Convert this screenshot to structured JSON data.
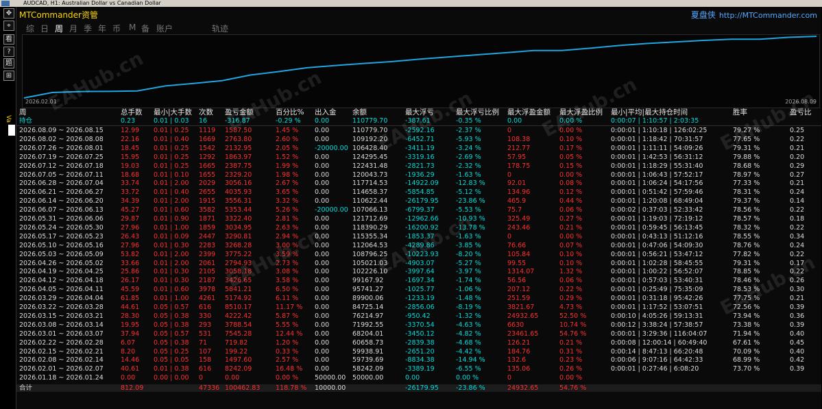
{
  "window": {
    "title": "AUDCAD, H1:  Australian Dollar vs Canadian Dollar"
  },
  "brand": "MTCommander资管",
  "brand_right": {
    "cn": "夏盘侠",
    "url": "http://MTCommander.com"
  },
  "tabs": [
    "综",
    "日",
    "周",
    "月",
    "季",
    "年",
    "币",
    "M",
    "备",
    "账户",
    "轨迹"
  ],
  "active_tab": "周",
  "left_toolbar": [
    "✥",
    "⌖",
    "看",
    "?",
    "题",
    "⊞",
    "▣"
  ],
  "left_vtab": "Va",
  "watermark": "EAHub.cn",
  "chart": {
    "x_start_label": "2026.02.01",
    "x_end_label": "2026.08.09",
    "line_color": "#1ea7e1"
  },
  "chart_data": {
    "type": "line",
    "title": "",
    "xlabel": "",
    "ylabel": "",
    "x": [
      "2026.01.18",
      "2026.02.01",
      "2026.02.08",
      "2026.02.15",
      "2026.02.22",
      "2026.03.01",
      "2026.03.08",
      "2026.03.15",
      "2026.03.22",
      "2026.03.29",
      "2026.04.05",
      "2026.04.12",
      "2026.04.19",
      "2026.04.26",
      "2026.05.03",
      "2026.05.10",
      "2026.05.17",
      "2026.05.24",
      "2026.05.31",
      "2026.06.07",
      "2026.06.14",
      "2026.06.21",
      "2026.06.28",
      "2026.07.05",
      "2026.07.12",
      "2026.07.19",
      "2026.07.26",
      "2026.08.02",
      "2026.08.09"
    ],
    "series": [
      {
        "values": [
          50000,
          58242.09,
          59739.69,
          59938.91,
          60658.73,
          68204.01,
          71992.55,
          76214.97,
          84725.14,
          89900.06,
          95741.27,
          99167.92,
          102226.1,
          105021.03,
          108796.25,
          112064.53,
          115355.34,
          118390.29,
          121712.69,
          107066.13,
          110622.44,
          114658.37,
          117714.53,
          120043.73,
          122431.48,
          124295.45,
          106428.4,
          109192.2,
          110779.7
        ]
      }
    ]
  },
  "table": {
    "headers": [
      "周",
      "总手数",
      "最小|大手数",
      "次数",
      "盈亏金额",
      "百分比%",
      "出入金",
      "余额",
      "最大浮亏",
      "最大浮亏比例",
      "最大浮盈金额",
      "最大浮盈比例",
      "最小|平均|最大持仓时间",
      "胜率",
      "盈亏比"
    ],
    "holding": [
      "持仓",
      "0.23",
      "0.01 | 0.03",
      "16",
      "-316.87",
      "-0.29 %",
      "0.00",
      "110779.70",
      "-387.61",
      "-0.35 %",
      "0.00",
      "0.00 %",
      "0:00:07 | 1:10:57 | 2:03:35",
      "",
      ""
    ],
    "rows": [
      [
        "2026.08.09 ~ 2026.08.15",
        "12.99",
        "0.01 | 0.25",
        "1119",
        "1587.50",
        "1.45 %",
        "0.00",
        "110779.70",
        "-2592.16",
        "-2.37 %",
        "0",
        "0.00 %",
        "0:00:01 | 1:10:18 | 126:02:25",
        "79.27 %",
        "0.25"
      ],
      [
        "2026.08.02 ~ 2026.08.08",
        "22.16",
        "0.01 | 0.40",
        "1669",
        "2763.80",
        "2.60 %",
        "0.00",
        "109192.20",
        "-6452.71",
        "-5.93 %",
        "108.38",
        "0.10 %",
        "0:00:01 | 1:18:42 | 70:31:57",
        "77.65 %",
        "0.22"
      ],
      [
        "2026.07.26 ~ 2026.08.01",
        "18.45",
        "0.01 | 0.25",
        "1542",
        "2132.95",
        "2.05 %",
        "-20000.00",
        "106428.40",
        "-3411.19",
        "-3.24 %",
        "212.77",
        "0.17 %",
        "0:00:01 | 1:11:11 | 54:09:26",
        "79.31 %",
        "0.21"
      ],
      [
        "2026.07.19 ~ 2026.07.25",
        "15.95",
        "0.01 | 0.25",
        "1292",
        "1863.97",
        "1.52 %",
        "0.00",
        "124295.45",
        "-3319.16",
        "-2.69 %",
        "57.95",
        "0.05 %",
        "0:00:01 | 1:42:53 | 56:31:12",
        "79.88 %",
        "0.20"
      ],
      [
        "2026.07.12 ~ 2026.07.18",
        "19.03",
        "0.01 | 0.25",
        "1665",
        "2387.75",
        "1.99 %",
        "0.00",
        "122431.48",
        "-2821.73",
        "-2.32 %",
        "178.75",
        "0.15 %",
        "0:00:01 | 1:18:29 | 55:31:40",
        "78.68 %",
        "0.29"
      ],
      [
        "2026.07.05 ~ 2026.07.11",
        "18.68",
        "0.01 | 0.10",
        "1655",
        "2329.20",
        "1.98 %",
        "0.00",
        "120043.73",
        "-1936.29",
        "-1.63 %",
        "0",
        "0.00 %",
        "0:00:01 | 1:06:43 | 57:52:17",
        "78.97 %",
        "0.27"
      ],
      [
        "2026.06.28 ~ 2026.07.04",
        "33.74",
        "0.01 | 2.00",
        "2029",
        "3056.16",
        "2.67 %",
        "0.00",
        "117714.53",
        "-14922.09",
        "-12.83 %",
        "92.01",
        "0.08 %",
        "0:00:01 | 1:06:24 | 54:17:56",
        "77.33 %",
        "0.21"
      ],
      [
        "2026.06.21 ~ 2026.06.27",
        "33.72",
        "0.01 | 0.40",
        "2655",
        "4035.93",
        "3.65 %",
        "0.00",
        "114658.37",
        "-5854.85",
        "-5.12 %",
        "134.96",
        "0.12 %",
        "0:00:01 | 0:51:42 | 57:59:46",
        "78.31 %",
        "0.24"
      ],
      [
        "2026.06.14 ~ 2026.06.20",
        "34.39",
        "0.01 | 2.00",
        "1915",
        "3556.31",
        "3.32 %",
        "0.00",
        "110622.44",
        "-26179.95",
        "-23.86 %",
        "465.9",
        "0.44 %",
        "0:00:01 | 1:20:08 | 68:49:04",
        "79.37 %",
        "0.14"
      ],
      [
        "2026.06.07 ~ 2026.06.13",
        "45.27",
        "0.01 | 0.60",
        "3582",
        "5353.44",
        "5.26 %",
        "-20000.00",
        "107066.13",
        "-6799.37",
        "-5.53 %",
        "75.7",
        "0.06 %",
        "0:00:02 | 0:37:03 | 52:33:42",
        "78.56 %",
        "0.22"
      ],
      [
        "2026.05.31 ~ 2026.06.06",
        "29.87",
        "0.01 | 0.90",
        "1871",
        "3322.40",
        "2.81 %",
        "0.00",
        "121712.69",
        "-12962.66",
        "-10.93 %",
        "325.49",
        "0.27 %",
        "0:00:01 | 1:19:03 | 72:19:12",
        "78.57 %",
        "0.18"
      ],
      [
        "2026.05.24 ~ 2026.05.30",
        "27.96",
        "0.01 | 1.00",
        "1859",
        "3034.95",
        "2.63 %",
        "0.00",
        "118390.29",
        "-16200.92",
        "-13.78 %",
        "243.46",
        "0.21 %",
        "0:00:01 | 0:59:45 | 56:13:45",
        "78.32 %",
        "0.22"
      ],
      [
        "2026.05.17 ~ 2026.05.23",
        "26.43",
        "0.01 | 0.09",
        "2447",
        "3290.81",
        "2.94 %",
        "0.00",
        "115355.34",
        "-1853.37",
        "-1.63 %",
        "0",
        "0.00 %",
        "0:00:01 | 0:43:13 | 51:12:16",
        "78.55 %",
        "0.34"
      ],
      [
        "2026.05.10 ~ 2026.05.16",
        "27.96",
        "0.01 | 0.30",
        "2283",
        "3268.28",
        "3.00 %",
        "0.00",
        "112064.53",
        "-4289.86",
        "-3.85 %",
        "76.66",
        "0.07 %",
        "0:00:01 | 0:47:06 | 54:09:30",
        "78.76 %",
        "0.24"
      ],
      [
        "2026.05.03 ~ 2026.05.09",
        "53.82",
        "0.01 | 2.00",
        "2399",
        "3775.22",
        "3.59 %",
        "0.00",
        "108796.25",
        "-10223.93",
        "-8.20 %",
        "105.84",
        "0.10 %",
        "0:00:01 | 0:56:21 | 53:47:12",
        "77.82 %",
        "0.22"
      ],
      [
        "2026.04.26 ~ 2026.05.02",
        "33.66",
        "0.01 | 2.00",
        "2061",
        "2794.93",
        "2.73 %",
        "0.00",
        "105021.03",
        "-4903.07",
        "-5.27 %",
        "99.55",
        "0.10 %",
        "0:00:01 | 1:02:28 | 58:45:55",
        "79.31 %",
        "0.17"
      ],
      [
        "2026.04.19 ~ 2026.04.25",
        "25.86",
        "0.01 | 0.30",
        "2105",
        "3058.18",
        "3.08 %",
        "0.00",
        "102226.10",
        "-3997.64",
        "-3.97 %",
        "1314.07",
        "1.32 %",
        "0:00:01 | 1:00:22 | 56:52:07",
        "78.85 %",
        "0.22"
      ],
      [
        "2026.04.12 ~ 2026.04.18",
        "26.17",
        "0.01 | 0.30",
        "2187",
        "3426.65",
        "3.58 %",
        "0.00",
        "99167.92",
        "-1697.34",
        "-1.74 %",
        "56.56",
        "0.06 %",
        "0:00:01 | 0:57:03 | 53:40:31",
        "78.46 %",
        "0.26"
      ],
      [
        "2026.04.05 ~ 2026.04.11",
        "45.59",
        "0.01 | 0.60",
        "3978",
        "5841.21",
        "6.50 %",
        "0.00",
        "95741.27",
        "-1025.77",
        "-1.06 %",
        "207.12",
        "0.22 %",
        "0:00:01 | 0:25:49 | 75:35:09",
        "78.53 %",
        "0.30"
      ],
      [
        "2026.03.29 ~ 2026.04.04",
        "61.85",
        "0.01 | 1.00",
        "4261",
        "5174.92",
        "6.11 %",
        "0.00",
        "89900.06",
        "-1233.19",
        "-1.48 %",
        "251.59",
        "0.29 %",
        "0:00:01 | 0:31:18 | 95:42:26",
        "77.75 %",
        "0.21"
      ],
      [
        "2026.03.22 ~ 2026.03.28",
        "44.61",
        "0.05 | 0.57",
        "616",
        "8510.17",
        "11.17 %",
        "0.00",
        "84725.14",
        "-2856.06",
        "-8.19 %",
        "3821.67",
        "4.73 %",
        "0:00:01 | 1:17:52 | 53:07:51",
        "72.56 %",
        "0.39"
      ],
      [
        "2026.03.15 ~ 2026.03.21",
        "28.30",
        "0.05 | 0.38",
        "330",
        "4222.42",
        "5.87 %",
        "0.00",
        "76214.97",
        "-950.42",
        "-1.32 %",
        "24932.65",
        "52.50 %",
        "0:00:10 | 4:05:26 | 59:13:31",
        "73.94 %",
        "0.36"
      ],
      [
        "2026.03.08 ~ 2026.03.14",
        "19.95",
        "0.05 | 0.38",
        "293",
        "3788.54",
        "5.55 %",
        "0.00",
        "71992.55",
        "-3370.54",
        "-4.63 %",
        "6630",
        "10.74 %",
        "0:00:12 | 3:38:24 | 57:38:57",
        "73.38 %",
        "0.39"
      ],
      [
        "2026.03.01 ~ 2026.03.07",
        "37.94",
        "0.05 | 0.57",
        "531",
        "7545.28",
        "12.44 %",
        "0.00",
        "68204.01",
        "-3450.12",
        "-4.82 %",
        "23461.65",
        "54.76 %",
        "0:00:01 | 3:29:36 | 116:04:07",
        "71.94 %",
        "0.40"
      ],
      [
        "2026.02.22 ~ 2026.02.28",
        "6.07",
        "0.05 | 0.38",
        "71",
        "719.82",
        "1.20 %",
        "0.00",
        "60658.73",
        "-2839.38",
        "-4.68 %",
        "126.21",
        "0.21 %",
        "0:00:08 | 12:00:14 | 60:49:40",
        "67.61 %",
        "0.45"
      ],
      [
        "2026.02.15 ~ 2026.02.21",
        "8.20",
        "0.05 | 0.25",
        "107",
        "199.22",
        "0.33 %",
        "0.00",
        "59938.91",
        "-2651.20",
        "-4.42 %",
        "184.76",
        "0.31 %",
        "0:00:14 | 8:47:13 | 66:20:48",
        "70.09 %",
        "0.40"
      ],
      [
        "2026.02.08 ~ 2026.02.14",
        "14.46",
        "0.05 | 0.05",
        "158",
        "1497.60",
        "2.57 %",
        "0.00",
        "59739.69",
        "-8834.38",
        "-14.94 %",
        "132.6",
        "0.23 %",
        "0:00:06 | 9:07:16 | 64:42:33",
        "68.99 %",
        "0.42"
      ],
      [
        "2026.02.01 ~ 2026.02.07",
        "40.61",
        "0.01 | 0.38",
        "616",
        "8242.09",
        "16.48 %",
        "0.00",
        "58242.09",
        "-3389.19",
        "-6.55 %",
        "135.06",
        "0.26 %",
        "0:00:01 | 0:27:46 | 6:08:20",
        "73.70 %",
        "0.39"
      ],
      [
        "2026.01.18 ~ 2026.01.24",
        "0.00",
        "0.00 | 0.00",
        "0",
        "0.00",
        "0.00 %",
        "50000.00",
        "50000.00",
        "0.00",
        "0.00 %",
        "0",
        "0.00 %",
        "",
        "",
        ""
      ]
    ],
    "total": [
      "合计",
      "812.09",
      "",
      "47336",
      "100462.83",
      "118.78 %",
      "10000.00",
      "",
      "-26179.95",
      "-23.86 %",
      "24932.65",
      "54.76 %",
      "",
      "",
      ""
    ]
  }
}
